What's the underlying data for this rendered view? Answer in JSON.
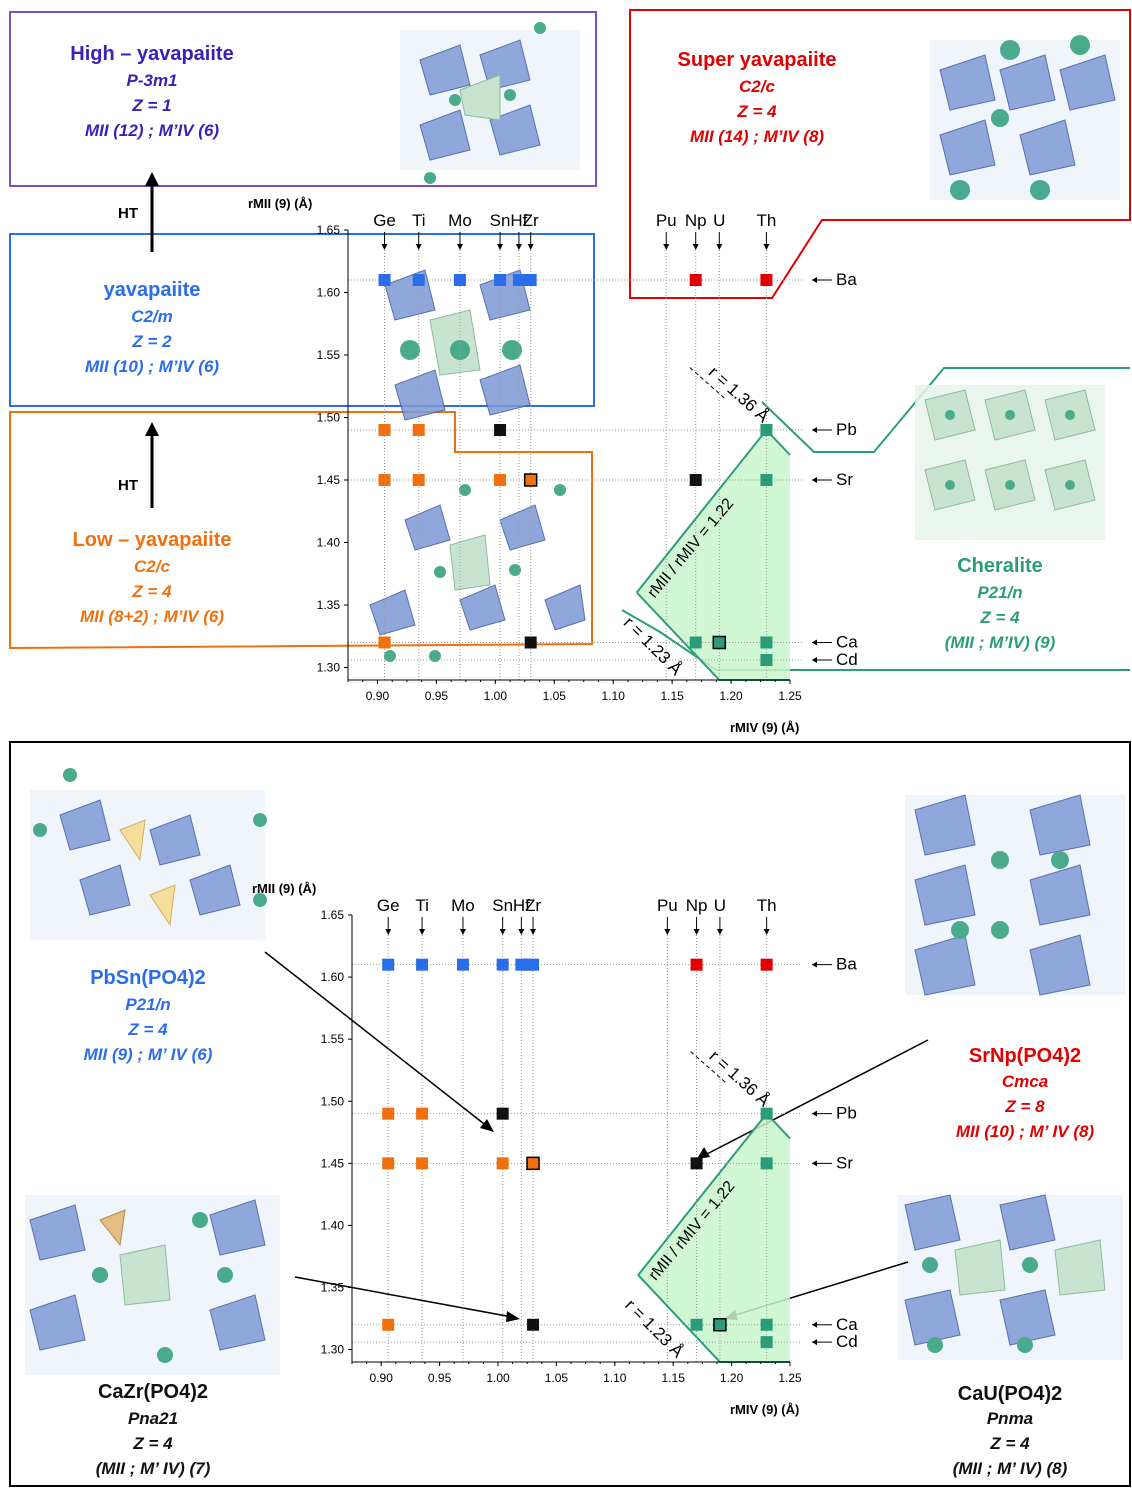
{
  "top_diagram": {
    "phase_high": {
      "title": "High – yavapaiite",
      "space_group": "P-3m1",
      "z": "Z = 1",
      "coord": "MII (12) ; M’IV (6)",
      "color": "#3a1fb8"
    },
    "phase_super": {
      "title": "Super yavapaiite",
      "space_group": "C2/c",
      "z": "Z = 4",
      "coord": "MII (14) ; M’IV (8)",
      "color": "#e00000"
    },
    "phase_yav": {
      "title": "yavapaiite",
      "space_group": "C2/m",
      "z": "Z = 2",
      "coord": "MII (10) ; M’IV (6)",
      "color": "#2a6de8"
    },
    "phase_low": {
      "title": "Low – yavapaiite",
      "space_group": "C2/c",
      "z": "Z = 4",
      "coord": "MII (8+2) ; M’IV (6)",
      "color": "#f07010"
    },
    "phase_cheralite": {
      "title": "Cheralite",
      "space_group": "P21/n",
      "z": "Z = 4",
      "coord": "(MII ; M’IV) (9)",
      "color": "#2a9d78"
    },
    "ht_labels": [
      "HT",
      "HT"
    ]
  },
  "bottom_diagram": {
    "pbsn": {
      "formula": "PbSn(PO4)2",
      "space_group": "P21/n",
      "z": "Z = 4",
      "coord": "MII (9) ; M’ IV (6)",
      "color": "#2a6de8"
    },
    "srnp": {
      "formula": "SrNp(PO4)2",
      "space_group": "Cmca",
      "z": "Z = 8",
      "coord": "MII (10) ; M’ IV (8)",
      "color": "#e00000"
    },
    "cazr": {
      "formula": "CaZr(PO4)2",
      "space_group": "Pna21",
      "z": "Z = 4",
      "coord": "(MII ; M’ IV) (7)",
      "color": "#111111"
    },
    "cau": {
      "formula": "CaU(PO4)2",
      "space_group": "Pnma",
      "z": "Z = 4",
      "coord": "(MII ; M’ IV) (8)",
      "color": "#111111"
    }
  },
  "chart_data": [
    {
      "type": "scatter",
      "xlabel": "rMIV (9) (Å)",
      "ylabel": "rMII (9) (Å)",
      "xlim": [
        0.875,
        1.25
      ],
      "ylim": [
        1.29,
        1.65
      ],
      "xticks": [
        "0.90",
        "0.95",
        "1.00",
        "1.05",
        "1.10",
        "1.15",
        "1.20",
        "1.25"
      ],
      "yticks": [
        "1.30",
        "1.35",
        "1.40",
        "1.45",
        "1.50",
        "1.55",
        "1.60",
        "1.65"
      ],
      "top_labels": [
        {
          "label": "Ge",
          "x": 0.906
        },
        {
          "label": "Ti",
          "x": 0.935
        },
        {
          "label": "Mo",
          "x": 0.97
        },
        {
          "label": "Sn",
          "x": 1.004
        },
        {
          "label": "Hf",
          "x": 1.02
        },
        {
          "label": "Zr",
          "x": 1.03
        },
        {
          "label": "Pu",
          "x": 1.145
        },
        {
          "label": "Np",
          "x": 1.17
        },
        {
          "label": "U",
          "x": 1.19
        },
        {
          "label": "Th",
          "x": 1.23
        }
      ],
      "right_labels": [
        {
          "label": "Ba",
          "y": 1.61
        },
        {
          "label": "Pb",
          "y": 1.49
        },
        {
          "label": "Sr",
          "y": 1.45
        },
        {
          "label": "Ca",
          "y": 1.32
        },
        {
          "label": "Cd",
          "y": 1.306
        }
      ],
      "annotations": [
        "r = 1.36 Å",
        "rMII / rMIV = 1.22",
        "r = 1.23 Å"
      ],
      "points": [
        {
          "x": 0.906,
          "y": 1.61,
          "color": "#2a6de8"
        },
        {
          "x": 0.935,
          "y": 1.61,
          "color": "#2a6de8"
        },
        {
          "x": 0.97,
          "y": 1.61,
          "color": "#2a6de8"
        },
        {
          "x": 1.004,
          "y": 1.61,
          "color": "#2a6de8"
        },
        {
          "x": 1.02,
          "y": 1.61,
          "color": "#2a6de8"
        },
        {
          "x": 1.025,
          "y": 1.61,
          "color": "#2a6de8"
        },
        {
          "x": 1.03,
          "y": 1.61,
          "color": "#2a6de8"
        },
        {
          "x": 1.17,
          "y": 1.61,
          "color": "#e00000"
        },
        {
          "x": 1.23,
          "y": 1.61,
          "color": "#e00000"
        },
        {
          "x": 0.906,
          "y": 1.49,
          "color": "#f07010"
        },
        {
          "x": 0.935,
          "y": 1.49,
          "color": "#f07010"
        },
        {
          "x": 1.004,
          "y": 1.49,
          "color": "#111111"
        },
        {
          "x": 1.23,
          "y": 1.49,
          "color": "#2a9d78"
        },
        {
          "x": 0.906,
          "y": 1.45,
          "color": "#f07010"
        },
        {
          "x": 0.935,
          "y": 1.45,
          "color": "#f07010"
        },
        {
          "x": 1.004,
          "y": 1.45,
          "color": "#f07010"
        },
        {
          "x": 1.03,
          "y": 1.45,
          "color": "#f07010",
          "outlined": true
        },
        {
          "x": 1.17,
          "y": 1.45,
          "color": "#111111"
        },
        {
          "x": 1.23,
          "y": 1.45,
          "color": "#2a9d78"
        },
        {
          "x": 0.906,
          "y": 1.32,
          "color": "#f07010"
        },
        {
          "x": 1.03,
          "y": 1.32,
          "color": "#111111"
        },
        {
          "x": 1.17,
          "y": 1.32,
          "color": "#2a9d78"
        },
        {
          "x": 1.19,
          "y": 1.32,
          "color": "#2a9d78",
          "outlined": true
        },
        {
          "x": 1.23,
          "y": 1.32,
          "color": "#2a9d78"
        },
        {
          "x": 1.23,
          "y": 1.306,
          "color": "#2a9d78"
        }
      ]
    }
  ],
  "colors": {
    "blue": "#2a6de8",
    "red": "#e00000",
    "orange": "#f07010",
    "green": "#2a9d78",
    "green_fill": "#c8f4cc",
    "purple": "#7a4fc8"
  }
}
